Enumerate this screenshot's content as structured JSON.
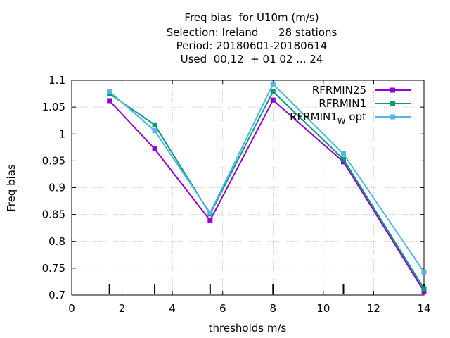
{
  "chart_data": {
    "type": "line",
    "title": [
      "Freq bias  for U10m (m/s)",
      "Selection: Ireland      28 stations",
      "Period: 20180601-20180614",
      "Used  00,12  + 01 02 ... 24"
    ],
    "xlabel": "thresholds m/s",
    "ylabel": "Freq bias",
    "xlim": [
      0,
      14
    ],
    "ylim": [
      0.7,
      1.1
    ],
    "xticks": [
      "0",
      "2",
      "4",
      "6",
      "8",
      "10",
      "12",
      "14"
    ],
    "yticks": [
      "0.7",
      "0.75",
      "0.8",
      "0.85",
      "0.9",
      "0.95",
      "1",
      "1.05",
      "1.1"
    ],
    "grid": true,
    "legend_position": "top-right",
    "threshold_marks": [
      1.5,
      3.3,
      5.5,
      8.0,
      10.8,
      14.0
    ],
    "series": [
      {
        "name": "RFRMIN25",
        "color": "#9400d3",
        "x": [
          1.5,
          3.3,
          5.5,
          8.0,
          10.8,
          14.0
        ],
        "y": [
          1.062,
          0.972,
          0.839,
          1.063,
          0.948,
          0.707
        ]
      },
      {
        "name": "RFRMIN1",
        "color": "#009e73",
        "x": [
          1.5,
          3.3,
          5.5,
          8.0,
          10.8,
          14.0
        ],
        "y": [
          1.075,
          1.017,
          0.851,
          1.079,
          0.953,
          0.712
        ]
      },
      {
        "name": "RFRMIN1",
        "name_subscript": "W",
        "name_suffix": " opt",
        "color": "#56b4e9",
        "x": [
          1.5,
          3.3,
          5.5,
          8.0,
          10.8,
          14.0
        ],
        "y": [
          1.079,
          1.006,
          0.853,
          1.093,
          0.963,
          0.743
        ]
      }
    ]
  }
}
